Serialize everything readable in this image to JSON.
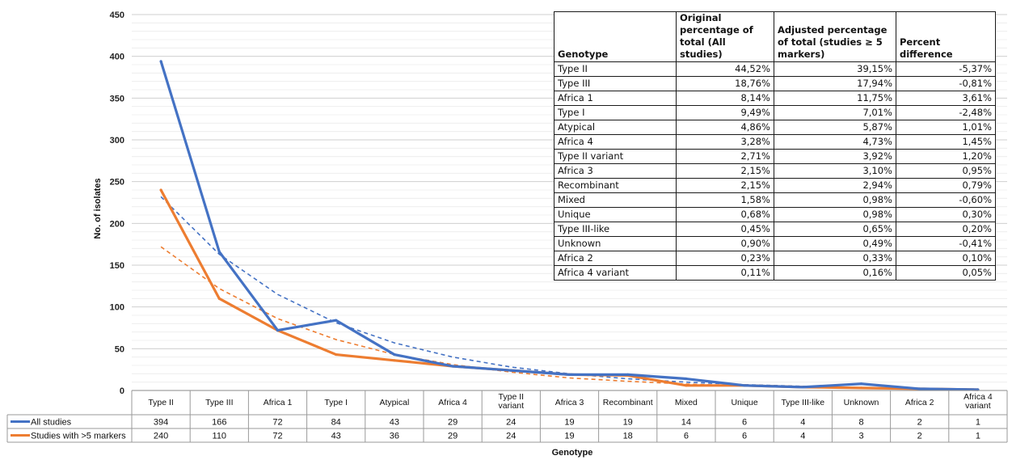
{
  "chart_data": {
    "type": "line",
    "ylabel": "No. of isolates",
    "xlabel": "Genotype",
    "ylim": [
      0,
      450
    ],
    "yticks": [
      0,
      50,
      100,
      150,
      200,
      250,
      300,
      350,
      400,
      450
    ],
    "grid": true,
    "categories": [
      "Type II",
      "Type III",
      "Africa 1",
      "Type I",
      "Atypical",
      "Africa 4",
      "Type II variant",
      "Africa 3",
      "Recombinant",
      "Mixed",
      "Unique",
      "Type III-like",
      "Unknown",
      "Africa 2",
      "Africa 4 variant"
    ],
    "category_display": [
      [
        "Type II"
      ],
      [
        "Type III"
      ],
      [
        "Africa 1"
      ],
      [
        "Type I"
      ],
      [
        "Atypical"
      ],
      [
        "Africa 4"
      ],
      [
        "Type II",
        "variant"
      ],
      [
        "Africa 3"
      ],
      [
        "Recombinant"
      ],
      [
        "Mixed"
      ],
      [
        "Unique"
      ],
      [
        "Type III-like"
      ],
      [
        "Unknown"
      ],
      [
        "Africa 2"
      ],
      [
        "Africa 4",
        "variant"
      ]
    ],
    "series": [
      {
        "name": "All studies",
        "color": "#4472c4",
        "values": [
          394,
          166,
          72,
          84,
          43,
          29,
          24,
          19,
          19,
          14,
          6,
          4,
          8,
          2,
          1
        ]
      },
      {
        "name": "Studies with >5 markers",
        "color": "#ed7d31",
        "values": [
          240,
          110,
          72,
          43,
          36,
          29,
          24,
          19,
          18,
          6,
          6,
          4,
          3,
          2,
          1
        ]
      }
    ],
    "trendlines": [
      {
        "series": "All studies",
        "style": "dashed",
        "values": [
          232,
          163,
          115,
          81,
          57,
          40,
          28,
          20,
          14,
          10,
          7,
          5,
          3.5,
          2.5,
          1.7
        ]
      },
      {
        "series": "Studies with >5 markers",
        "style": "dashed",
        "values": [
          172,
          122,
          86,
          61,
          43,
          31,
          22,
          15,
          11,
          7.7,
          5.4,
          3.8,
          2.7,
          1.9,
          1.35
        ]
      }
    ],
    "legend_placement": "data-table"
  },
  "overlay_table": {
    "headers": [
      "Genotype",
      "Original percentage of total (All studies)",
      "Adjusted percentage of total (studies ≥ 5 markers)",
      "Percent difference"
    ],
    "rows": [
      [
        "Type II",
        "44,52%",
        "39,15%",
        "-5,37%"
      ],
      [
        "Type III",
        "18,76%",
        "17,94%",
        "-0,81%"
      ],
      [
        "Africa 1",
        "8,14%",
        "11,75%",
        "3,61%"
      ],
      [
        "Type I",
        "9,49%",
        "7,01%",
        "-2,48%"
      ],
      [
        "Atypical",
        "4,86%",
        "5,87%",
        "1,01%"
      ],
      [
        "Africa 4",
        "3,28%",
        "4,73%",
        "1,45%"
      ],
      [
        "Type II variant",
        "2,71%",
        "3,92%",
        "1,20%"
      ],
      [
        "Africa 3",
        "2,15%",
        "3,10%",
        "0,95%"
      ],
      [
        "Recombinant",
        "2,15%",
        "2,94%",
        "0,79%"
      ],
      [
        "Mixed",
        "1,58%",
        "0,98%",
        "-0,60%"
      ],
      [
        "Unique",
        "0,68%",
        "0,98%",
        "0,30%"
      ],
      [
        "Type III-like",
        "0,45%",
        "0,65%",
        "0,20%"
      ],
      [
        "Unknown",
        "0,90%",
        "0,49%",
        "-0,41%"
      ],
      [
        "Africa 2",
        "0,23%",
        "0,33%",
        "0,10%"
      ],
      [
        "Africa 4 variant",
        "0,11%",
        "0,16%",
        "0,05%"
      ]
    ]
  }
}
